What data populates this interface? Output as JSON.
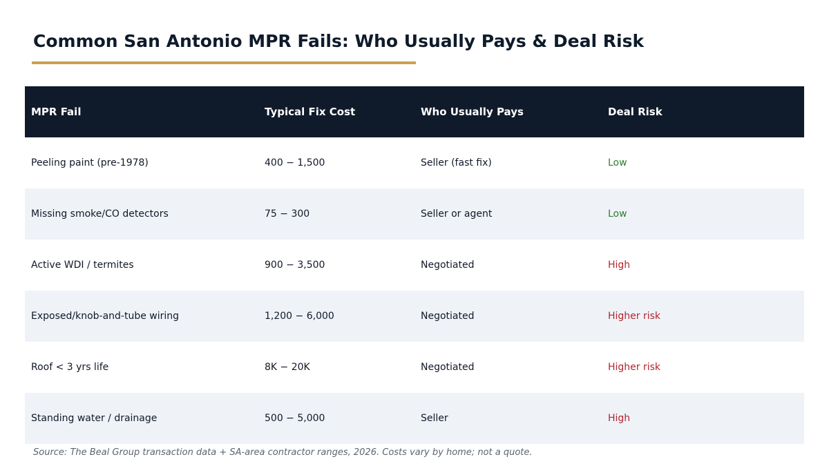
{
  "title": "Common San Antonio MPR Fails: Who Usually Pays & Deal Risk",
  "colors": {
    "header_bg": "#0f1b2a",
    "accent_rule": "#c9a24f",
    "alt_row_bg": "#eff3f8",
    "risk_low": "#2e7d32",
    "risk_high": "#b3242d"
  },
  "chart_data": {
    "type": "table",
    "columns": [
      "MPR Fail",
      "Typical Fix Cost",
      "Who Usually Pays",
      "Deal Risk"
    ],
    "rows": [
      {
        "fail": "Peeling paint (pre-1978)",
        "cost": "400 − 1,500",
        "payer": "Seller (fast fix)",
        "risk": "Low",
        "risk_level": "low"
      },
      {
        "fail": "Missing smoke/CO detectors",
        "cost": "75 − 300",
        "payer": "Seller or agent",
        "risk": "Low",
        "risk_level": "low"
      },
      {
        "fail": "Active WDI / termites",
        "cost": "900 − 3,500",
        "payer": "Negotiated",
        "risk": "High",
        "risk_level": "high"
      },
      {
        "fail": "Exposed/knob-and-tube wiring",
        "cost": "1,200 − 6,000",
        "payer": "Negotiated",
        "risk": "Higher risk",
        "risk_level": "high"
      },
      {
        "fail": "Roof < 3 yrs life",
        "cost": "8K − 20K",
        "payer": "Negotiated",
        "risk": "Higher risk",
        "risk_level": "high"
      },
      {
        "fail": "Standing water / drainage",
        "cost": "500 − 5,000",
        "payer": "Seller",
        "risk": "High",
        "risk_level": "high"
      }
    ]
  },
  "source": "Source: The Beal Group transaction data + SA-area contractor ranges, 2026. Costs vary by home; not a quote."
}
